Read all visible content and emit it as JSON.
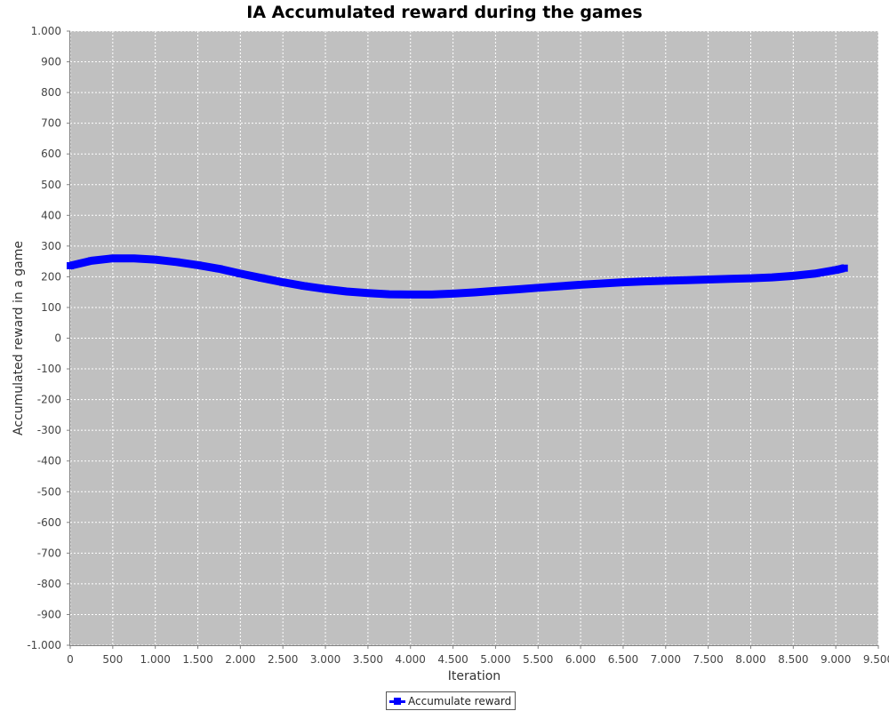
{
  "chart_data": {
    "type": "line",
    "title": "IA Accumulated reward during the games",
    "xlabel": "Iteration",
    "ylabel": "Accumulated reward in a game",
    "xlim": [
      0,
      9500
    ],
    "ylim": [
      -1000,
      1000
    ],
    "x_ticks": [
      0,
      500,
      1000,
      1500,
      2000,
      2500,
      3000,
      3500,
      4000,
      4500,
      5000,
      5500,
      6000,
      6500,
      7000,
      7500,
      8000,
      8500,
      9000,
      9500
    ],
    "x_tick_labels": [
      "0",
      "500",
      "1.000",
      "1.500",
      "2.000",
      "2.500",
      "3.000",
      "3.500",
      "4.000",
      "4.500",
      "5.000",
      "5.500",
      "6.000",
      "6.500",
      "7.000",
      "7.500",
      "8.000",
      "8.500",
      "9.000",
      "9.500"
    ],
    "y_ticks": [
      1000,
      900,
      800,
      700,
      600,
      500,
      400,
      300,
      200,
      100,
      0,
      -100,
      -200,
      -300,
      -400,
      -500,
      -600,
      -700,
      -800,
      -900,
      -1000
    ],
    "y_tick_labels": [
      "1.000",
      "900",
      "800",
      "700",
      "600",
      "500",
      "400",
      "300",
      "200",
      "100",
      "0",
      "-100",
      "-200",
      "-300",
      "-400",
      "-500",
      "-600",
      "-700",
      "-800",
      "-900",
      "-1.000"
    ],
    "grid": true,
    "legend_position": "bottom-center",
    "background_color": "#c0c0c0",
    "series": [
      {
        "name": "Accumulate reward",
        "color": "#0000ff",
        "x": [
          0,
          250,
          500,
          750,
          1000,
          1250,
          1500,
          1750,
          2000,
          2250,
          2500,
          2750,
          3000,
          3250,
          3500,
          3750,
          4000,
          4250,
          4500,
          4750,
          5000,
          5250,
          5500,
          5750,
          6000,
          6250,
          6500,
          6750,
          7000,
          7250,
          7500,
          7750,
          8000,
          8250,
          8500,
          8750,
          9000,
          9100
        ],
        "values": [
          236,
          252,
          260,
          260,
          256,
          248,
          238,
          226,
          210,
          196,
          182,
          170,
          160,
          152,
          147,
          143,
          142,
          142,
          145,
          149,
          154,
          159,
          164,
          169,
          174,
          178,
          182,
          185,
          187,
          189,
          191,
          193,
          195,
          198,
          203,
          210,
          222,
          228
        ]
      }
    ]
  }
}
